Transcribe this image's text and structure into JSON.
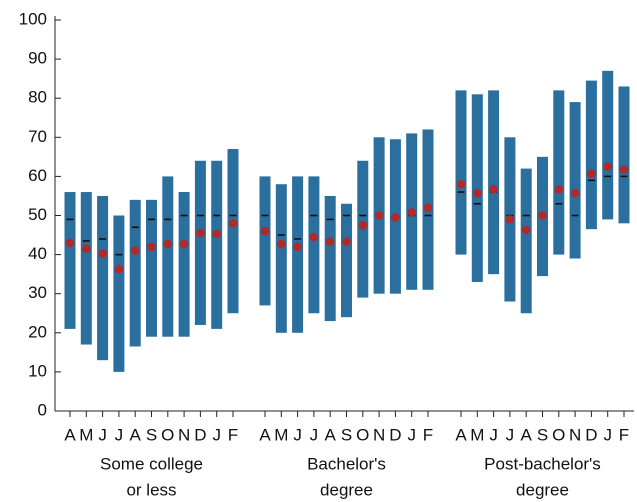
{
  "chart_data": {
    "type": "range",
    "categories": [
      "A",
      "M",
      "J",
      "J",
      "A",
      "S",
      "O",
      "N",
      "D",
      "J",
      "F"
    ],
    "ylim": [
      0,
      100
    ],
    "yticks": [
      0,
      10,
      20,
      30,
      40,
      50,
      60,
      70,
      80,
      90,
      100
    ],
    "bar_color": "#2a6f9e",
    "mean_color": "#b0292b",
    "median_color": "#111111",
    "groups": [
      {
        "label": [
          "Some college",
          "or less"
        ],
        "low": [
          21,
          17,
          13,
          10,
          16.5,
          19,
          19,
          19,
          22,
          21,
          25
        ],
        "high": [
          56,
          56,
          55,
          50,
          54,
          54,
          60,
          56,
          64,
          64,
          67
        ],
        "median": [
          49,
          43.5,
          44,
          40,
          47,
          49,
          49,
          50,
          50,
          50,
          50
        ],
        "mean": [
          43,
          41.5,
          40.3,
          36.3,
          41,
          42,
          42.7,
          42.7,
          45.5,
          45.3,
          48
        ]
      },
      {
        "label": [
          "Bachelor's",
          "degree"
        ],
        "low": [
          27,
          20,
          20,
          25,
          23,
          24,
          29,
          30,
          30,
          31,
          31
        ],
        "high": [
          60,
          58,
          60,
          60,
          55,
          53,
          64,
          70,
          69.5,
          71,
          72
        ],
        "median": [
          50,
          45,
          44,
          50,
          49,
          50,
          50,
          50,
          50,
          50,
          50
        ],
        "mean": [
          46,
          42.7,
          42,
          44.5,
          43.3,
          43.3,
          47.5,
          50,
          49.5,
          50.8,
          52
        ]
      },
      {
        "label": [
          "Post-bachelor's",
          "degree"
        ],
        "low": [
          40,
          33,
          35,
          28,
          25,
          34.5,
          40,
          39,
          46.5,
          49,
          48
        ],
        "high": [
          82,
          81,
          82,
          70,
          62,
          65,
          82,
          79,
          84.5,
          87,
          83
        ],
        "median": [
          56,
          53,
          56,
          50,
          50,
          50,
          53,
          50,
          59,
          60,
          60
        ],
        "mean": [
          58,
          55.7,
          56.7,
          49,
          46.3,
          50,
          56.7,
          55.7,
          60.7,
          62.5,
          61.7
        ]
      }
    ]
  }
}
